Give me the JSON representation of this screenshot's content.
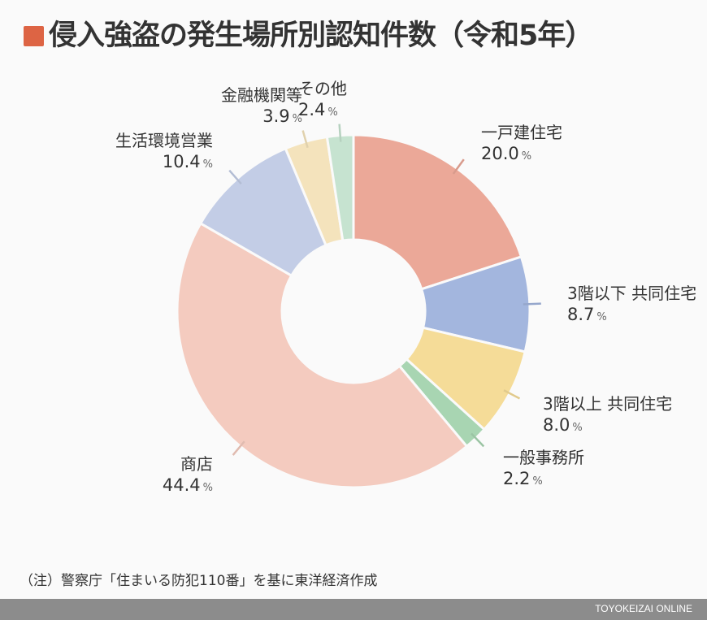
{
  "title": "侵入強盗の発生場所別認知件数（令和5年）",
  "title_marker_color": "#dd6444",
  "note": "（注）警察庁「住まいる防犯110番」を基に東洋経済作成",
  "brand": "TOYOKEIZAI ONLINE",
  "percent_unit": "%",
  "chart_data": {
    "type": "pie",
    "variant": "donut",
    "title": "侵入強盗の発生場所別認知件数（令和5年）",
    "unit": "%",
    "start_angle": "12 o'clock, clockwise",
    "categories": [
      "一戸建住宅",
      "3階以下 共同住宅",
      "3階以上 共同住宅",
      "一般事務所",
      "商店",
      "生活環境営業",
      "金融機関等",
      "その他"
    ],
    "values": [
      20.0,
      8.7,
      8.0,
      2.2,
      44.4,
      10.4,
      3.9,
      2.4
    ],
    "colors": [
      "#eba898",
      "#a3b6de",
      "#f5dc98",
      "#a8d5b2",
      "#f4cbbf",
      "#c3cde6",
      "#f4e3bc",
      "#c6e3d0"
    ],
    "source_note": "（注）警察庁「住まいる防犯110番」を基に東洋経済作成"
  },
  "labels": [
    {
      "name": "一戸建住宅",
      "value": "20.0"
    },
    {
      "name": "3階以下 共同住宅",
      "value": "8.7"
    },
    {
      "name": "3階以上 共同住宅",
      "value": "8.0"
    },
    {
      "name": "一般事務所",
      "value": "2.2"
    },
    {
      "name": "商店",
      "value": "44.4"
    },
    {
      "name": "生活環境営業",
      "value": "10.4"
    },
    {
      "name": "金融機関等",
      "value": "3.9"
    },
    {
      "name": "その他",
      "value": "2.4"
    }
  ]
}
